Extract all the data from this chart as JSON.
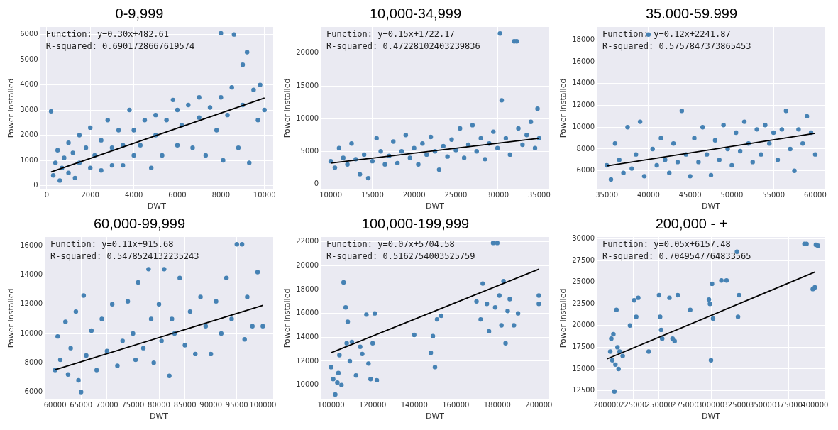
{
  "chart_data": [
    {
      "type": "scatter",
      "title": "0-9,999",
      "xlabel": "DWT",
      "ylabel": "Power Installed",
      "xlim": [
        -300,
        10400
      ],
      "ylim": [
        -150,
        6300
      ],
      "xticks": [
        0,
        2000,
        4000,
        6000,
        8000,
        10000
      ],
      "yticks": [
        0,
        1000,
        2000,
        3000,
        4000,
        5000,
        6000
      ],
      "grid": true,
      "legend": false,
      "annotations": [
        "Function: y=0.30x+482.61",
        "R-squared: 0.6901728667619574"
      ],
      "series": [
        {
          "color": "#4682b4",
          "marker": "circle",
          "x": [
            200,
            300,
            400,
            500,
            600,
            700,
            800,
            1000,
            1000,
            1200,
            1300,
            1500,
            1500,
            1800,
            2000,
            2000,
            2200,
            2500,
            2500,
            2800,
            3000,
            3000,
            3300,
            3500,
            3500,
            3800,
            4000,
            4000,
            4300,
            4500,
            4800,
            5000,
            5000,
            5300,
            5500,
            5800,
            6000,
            6000,
            6200,
            6500,
            6700,
            7000,
            7000,
            7300,
            7500,
            7800,
            8000,
            8000,
            8100,
            8300,
            8500,
            8600,
            8800,
            9000,
            9000,
            9200,
            9300,
            9500,
            9700,
            9800,
            10000
          ],
          "values": [
            2950,
            400,
            900,
            1400,
            200,
            700,
            1100,
            1700,
            500,
            1300,
            300,
            2000,
            900,
            1500,
            2300,
            700,
            1200,
            1800,
            600,
            2600,
            1500,
            800,
            2200,
            1600,
            800,
            3000,
            2200,
            1200,
            1600,
            2600,
            700,
            2800,
            2000,
            1200,
            2600,
            3400,
            1600,
            3000,
            2400,
            3200,
            1500,
            2700,
            3500,
            1200,
            3100,
            2200,
            6050,
            3500,
            1000,
            2800,
            3900,
            6000,
            1500,
            4800,
            3200,
            5300,
            900,
            3800,
            2600,
            4000,
            3000
          ]
        },
        {
          "type": "line",
          "marker": "none",
          "color": "#000000",
          "x": [
            200,
            10000
          ],
          "values": [
            540,
            3480
          ]
        }
      ]
    },
    {
      "type": "scatter",
      "title": "10,000-34,999",
      "xlabel": "DWT",
      "ylabel": "Power Installed",
      "xlim": [
        8800,
        36200
      ],
      "ylim": [
        -800,
        24000
      ],
      "xticks": [
        10000,
        15000,
        20000,
        25000,
        30000,
        35000
      ],
      "yticks": [
        0,
        5000,
        10000,
        15000,
        20000
      ],
      "grid": true,
      "legend": false,
      "annotations": [
        "Function: y=0.15x+1722.17",
        "R-squared: 0.47228102403239836"
      ],
      "series": [
        {
          "color": "#4682b4",
          "marker": "circle",
          "x": [
            10000,
            10500,
            11000,
            11500,
            12000,
            12500,
            13000,
            13500,
            14000,
            14500,
            15000,
            15500,
            16000,
            16500,
            17000,
            17500,
            18000,
            18500,
            19000,
            19500,
            20000,
            20500,
            21000,
            21500,
            22000,
            22500,
            23000,
            23500,
            24000,
            24500,
            25000,
            25500,
            26000,
            26500,
            27000,
            27500,
            28000,
            28500,
            29000,
            29500,
            30000,
            30300,
            30500,
            31000,
            31500,
            32000,
            32300,
            32500,
            33000,
            33500,
            34000,
            34500,
            34800,
            35000
          ],
          "values": [
            3500,
            2500,
            5500,
            4000,
            3000,
            6200,
            3800,
            1500,
            4500,
            900,
            3500,
            7000,
            5000,
            3000,
            4300,
            6500,
            3200,
            5000,
            7500,
            4000,
            5500,
            3000,
            6200,
            4500,
            7200,
            5000,
            2200,
            5800,
            4200,
            6800,
            5200,
            8500,
            4000,
            6000,
            9000,
            5000,
            7000,
            3800,
            6200,
            8000,
            5500,
            23000,
            12800,
            7000,
            4500,
            21800,
            21800,
            8500,
            6000,
            7500,
            9500,
            5500,
            11500,
            7000
          ]
        },
        {
          "type": "line",
          "marker": "none",
          "color": "#000000",
          "x": [
            10000,
            35000
          ],
          "values": [
            3200,
            7000
          ]
        }
      ]
    },
    {
      "type": "scatter",
      "title": "35.000-59.999",
      "xlabel": "DWT",
      "ylabel": "Power Installed",
      "xlim": [
        33800,
        61200
      ],
      "ylim": [
        4300,
        19200
      ],
      "xticks": [
        35000,
        40000,
        45000,
        50000,
        55000,
        60000
      ],
      "yticks": [
        6000,
        8000,
        10000,
        12000,
        14000,
        16000,
        18000
      ],
      "grid": true,
      "legend": false,
      "annotations": [
        "Function: y=0.12x+2241.87",
        "R-squared: 0.5757847373865453"
      ],
      "series": [
        {
          "color": "#4682b4",
          "marker": "circle",
          "x": [
            35000,
            35500,
            36000,
            36500,
            37000,
            37500,
            38000,
            38500,
            39000,
            39500,
            40000,
            40500,
            41000,
            41500,
            42000,
            42500,
            43000,
            43500,
            44000,
            44500,
            45000,
            45500,
            46000,
            46500,
            47000,
            47500,
            48000,
            48500,
            49000,
            49500,
            50000,
            50500,
            51000,
            51500,
            52000,
            52500,
            53000,
            53500,
            54000,
            54500,
            55000,
            55500,
            56000,
            56500,
            57000,
            57500,
            58000,
            58500,
            59000,
            59500,
            60000
          ],
          "values": [
            6500,
            5200,
            8500,
            7000,
            5800,
            10000,
            6200,
            7500,
            10500,
            5500,
            18500,
            8000,
            6500,
            9000,
            7000,
            5800,
            8500,
            6800,
            11500,
            7500,
            5500,
            9000,
            6800,
            10000,
            7500,
            5600,
            8800,
            7000,
            10200,
            8000,
            6500,
            9500,
            7800,
            10500,
            8500,
            6800,
            9800,
            7500,
            10200,
            8500,
            9500,
            7000,
            9800,
            11500,
            8000,
            6000,
            9800,
            8500,
            11000,
            9500,
            7500
          ]
        },
        {
          "type": "line",
          "marker": "none",
          "color": "#000000",
          "x": [
            35000,
            60000
          ],
          "values": [
            6440,
            9440
          ]
        }
      ]
    },
    {
      "type": "scatter",
      "title": "60,000-99,999",
      "xlabel": "DWT",
      "ylabel": "Power Installed",
      "xlim": [
        58000,
        102000
      ],
      "ylim": [
        5500,
        16600
      ],
      "xticks": [
        60000,
        65000,
        70000,
        75000,
        80000,
        85000,
        90000,
        95000,
        100000
      ],
      "yticks": [
        6000,
        8000,
        10000,
        12000,
        14000,
        16000
      ],
      "grid": true,
      "legend": false,
      "annotations": [
        "Function: y=0.11x+915.68",
        "R-squared: 0.5478524132235243"
      ],
      "series": [
        {
          "color": "#4682b4",
          "marker": "circle",
          "x": [
            60000,
            60500,
            61000,
            62000,
            62500,
            63000,
            64000,
            64500,
            65000,
            65500,
            66000,
            67000,
            68000,
            69000,
            70000,
            71000,
            72000,
            73000,
            74000,
            75000,
            75500,
            76000,
            77000,
            78000,
            78500,
            79000,
            80000,
            80500,
            81000,
            82000,
            82500,
            83000,
            84000,
            85000,
            86000,
            87000,
            88000,
            89000,
            90000,
            91000,
            92000,
            93000,
            94000,
            95000,
            96000,
            96500,
            97000,
            98000,
            99000,
            100000
          ],
          "values": [
            7500,
            9800,
            8200,
            10800,
            7200,
            9000,
            11500,
            6800,
            6000,
            12600,
            8500,
            10200,
            7500,
            11000,
            8800,
            12000,
            7800,
            9500,
            12200,
            10000,
            8200,
            13500,
            9000,
            14400,
            11000,
            8000,
            12000,
            9500,
            14400,
            7100,
            11000,
            10000,
            13800,
            9200,
            11500,
            8600,
            12500,
            10500,
            8600,
            12200,
            10000,
            13800,
            11000,
            16100,
            16100,
            9600,
            12500,
            10500,
            14200,
            10500
          ]
        },
        {
          "type": "line",
          "marker": "none",
          "color": "#000000",
          "x": [
            60000,
            100000
          ],
          "values": [
            7520,
            11920
          ]
        }
      ]
    },
    {
      "type": "scatter",
      "title": "100,000-199,999",
      "xlabel": "DWT",
      "ylabel": "Power Installed",
      "xlim": [
        95000,
        205000
      ],
      "ylim": [
        8800,
        22400
      ],
      "xticks": [
        100000,
        120000,
        140000,
        160000,
        180000,
        200000
      ],
      "yticks": [
        10000,
        12000,
        14000,
        16000,
        18000,
        20000,
        22000
      ],
      "grid": true,
      "legend": false,
      "annotations": [
        "Function: y=0.07x+5704.58",
        "R-squared: 0.5162754003525759"
      ],
      "series": [
        {
          "color": "#4682b4",
          "marker": "circle",
          "x": [
            100000,
            101000,
            102000,
            103000,
            103500,
            104000,
            105000,
            106000,
            107000,
            107500,
            108000,
            109000,
            110000,
            112000,
            114000,
            115000,
            117000,
            118000,
            119000,
            120000,
            121000,
            122000,
            140000,
            148000,
            149000,
            150000,
            151000,
            153000,
            170000,
            172000,
            173000,
            175000,
            176000,
            178000,
            179000,
            180000,
            181000,
            182000,
            183000,
            184000,
            185000,
            186000,
            188000,
            190000,
            200000,
            200000
          ],
          "values": [
            11500,
            10500,
            9200,
            10200,
            11000,
            12500,
            10000,
            18600,
            16500,
            13500,
            15300,
            12000,
            13600,
            10800,
            13200,
            12600,
            15900,
            11800,
            10500,
            13500,
            16000,
            10400,
            14200,
            12700,
            14100,
            11500,
            15500,
            15800,
            17000,
            15500,
            18500,
            16800,
            14500,
            21900,
            16500,
            21900,
            17500,
            15000,
            18700,
            13500,
            16200,
            17200,
            15000,
            16000,
            17500,
            16800
          ]
        },
        {
          "type": "line",
          "marker": "none",
          "color": "#000000",
          "x": [
            100000,
            200000
          ],
          "values": [
            12700,
            19700
          ]
        }
      ]
    },
    {
      "type": "scatter",
      "title": "200,000 - +",
      "xlabel": "DWT",
      "ylabel": "Power Installed",
      "xlim": [
        190000,
        410000
      ],
      "ylim": [
        11500,
        30200
      ],
      "xticks": [
        200000,
        225000,
        250000,
        275000,
        300000,
        325000,
        350000,
        375000,
        400000
      ],
      "yticks": [
        12500,
        15000,
        17500,
        20000,
        22500,
        25000,
        27500,
        30000
      ],
      "grid": true,
      "legend": false,
      "annotations": [
        "Function: y=0.05x+6157.48",
        "R-squared: 0.7049547764833565"
      ],
      "series": [
        {
          "color": "#4682b4",
          "marker": "circle",
          "x": [
            203000,
            204000,
            205000,
            206000,
            207000,
            208000,
            209000,
            210000,
            211000,
            212000,
            215000,
            222000,
            226000,
            228000,
            230000,
            240000,
            250000,
            251000,
            252000,
            253000,
            260000,
            263000,
            265000,
            268000,
            280000,
            298000,
            299000,
            300000,
            301000,
            302000,
            310000,
            315000,
            325000,
            326000,
            327000,
            390000,
            392000,
            398000,
            400000,
            401000,
            403000
          ],
          "values": [
            17000,
            18500,
            16000,
            19000,
            12400,
            15500,
            21800,
            17500,
            15000,
            17000,
            16500,
            20000,
            22900,
            21000,
            23200,
            17000,
            23500,
            21000,
            19500,
            18500,
            23200,
            18500,
            18200,
            23500,
            21800,
            23000,
            22500,
            16000,
            24800,
            20800,
            25200,
            25200,
            28500,
            21000,
            23500,
            29400,
            29400,
            24200,
            24400,
            29300,
            29200
          ]
        },
        {
          "type": "line",
          "marker": "none",
          "color": "#000000",
          "x": [
            200000,
            400000
          ],
          "values": [
            16160,
            26160
          ]
        }
      ]
    }
  ]
}
